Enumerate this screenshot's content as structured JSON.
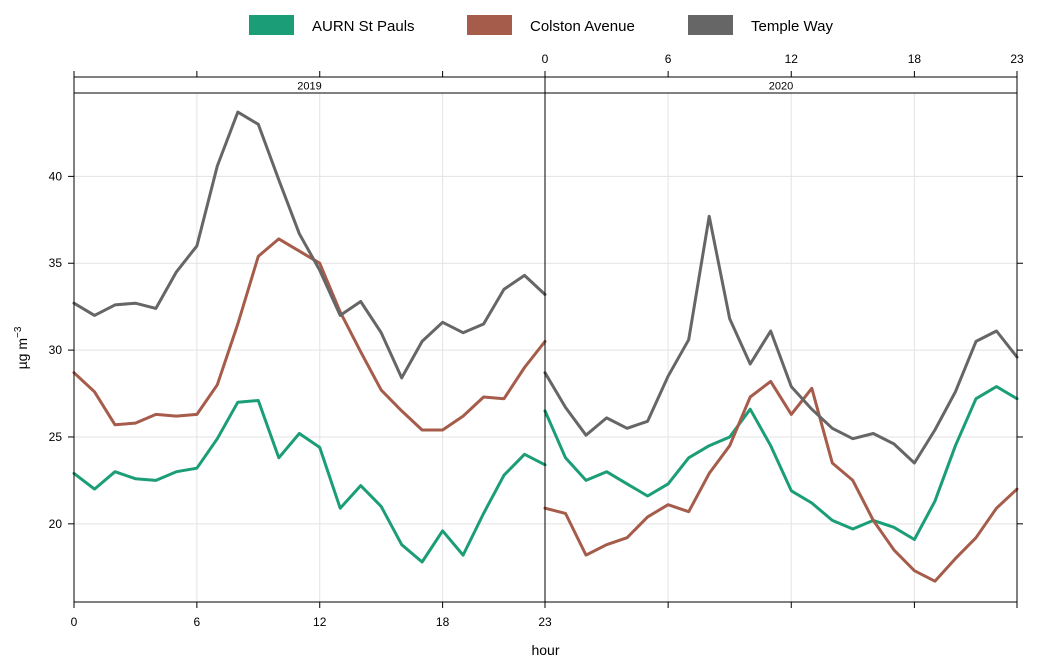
{
  "legend": [
    {
      "name": "AURN St Pauls",
      "color": "#1b9e77"
    },
    {
      "name": "Colston Avenue",
      "color": "#a65c4a"
    },
    {
      "name": "Temple Way",
      "color": "#666666"
    }
  ],
  "chart_data": {
    "type": "line",
    "xlabel": "hour",
    "ylabel_main": "µg m",
    "ylabel_sup": "−3",
    "xlim": [
      0,
      23
    ],
    "ylim": [
      15.5,
      44.8
    ],
    "x_ticks": [
      0,
      6,
      12,
      18,
      23
    ],
    "y_ticks": [
      20,
      25,
      30,
      35,
      40
    ],
    "grid": true,
    "legend_position": "top",
    "panels": [
      {
        "strip": "2019",
        "series": [
          {
            "name": "AURN St Pauls",
            "color": "#1b9e77",
            "values": [
              22.9,
              22.0,
              23.0,
              22.6,
              22.5,
              23.0,
              23.2,
              24.9,
              27.0,
              27.1,
              23.8,
              25.2,
              24.4,
              20.9,
              22.2,
              21.0,
              18.8,
              17.8,
              19.6,
              18.2,
              20.6,
              22.8,
              24.0,
              23.4
            ]
          },
          {
            "name": "Colston Avenue",
            "color": "#a65c4a",
            "values": [
              28.7,
              27.6,
              25.7,
              25.8,
              26.3,
              26.2,
              26.3,
              28.0,
              31.5,
              35.4,
              36.4,
              35.7,
              35.0,
              32.2,
              29.9,
              27.7,
              26.5,
              25.4,
              25.4,
              26.2,
              27.3,
              27.2,
              29.0,
              30.5
            ]
          },
          {
            "name": "Temple Way",
            "color": "#666666",
            "values": [
              32.7,
              32.0,
              32.6,
              32.7,
              32.4,
              34.5,
              36.0,
              40.6,
              43.7,
              43.0,
              39.8,
              36.7,
              34.6,
              32.0,
              32.8,
              31.0,
              28.4,
              30.5,
              31.6,
              31.0,
              31.5,
              33.5,
              34.3,
              33.2
            ]
          }
        ]
      },
      {
        "strip": "2020",
        "series": [
          {
            "name": "AURN St Pauls",
            "color": "#1b9e77",
            "values": [
              26.5,
              23.8,
              22.5,
              23.0,
              22.3,
              21.6,
              22.3,
              23.8,
              24.5,
              25.0,
              26.6,
              24.5,
              21.9,
              21.2,
              20.2,
              19.7,
              20.2,
              19.8,
              19.1,
              21.3,
              24.5,
              27.2,
              27.9,
              27.2
            ]
          },
          {
            "name": "Colston Avenue",
            "color": "#a65c4a",
            "values": [
              20.9,
              20.6,
              18.2,
              18.8,
              19.2,
              20.4,
              21.1,
              20.7,
              22.9,
              24.5,
              27.3,
              28.2,
              26.3,
              27.8,
              23.5,
              22.5,
              20.2,
              18.5,
              17.3,
              16.7,
              18.0,
              19.2,
              20.9,
              22.0
            ]
          },
          {
            "name": "Temple Way",
            "color": "#666666",
            "values": [
              28.7,
              26.7,
              25.1,
              26.1,
              25.5,
              25.9,
              28.5,
              30.6,
              37.7,
              31.8,
              29.2,
              31.1,
              27.9,
              26.6,
              25.5,
              24.9,
              25.2,
              24.6,
              23.5,
              25.4,
              27.6,
              30.5,
              31.1,
              29.6
            ]
          }
        ]
      }
    ]
  }
}
